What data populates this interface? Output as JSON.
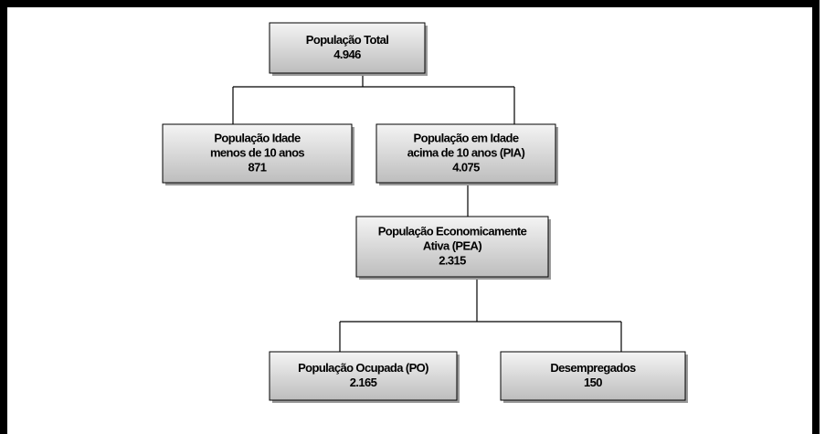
{
  "nodes": [
    {
      "lines": [
        "População Total"
      ],
      "value": "4.946"
    },
    {
      "lines": [
        "População Idade",
        "menos de 10 anos"
      ],
      "value": "871"
    },
    {
      "lines": [
        "População em Idade",
        "acima de 10 anos (PIA)"
      ],
      "value": "4.075"
    },
    {
      "lines": [
        "População Economicamente",
        "Ativa (PEA)"
      ],
      "value": "2.315"
    },
    {
      "lines": [
        "População Ocupada (PO)"
      ],
      "value": "2.165"
    },
    {
      "lines": [
        "Desempregados"
      ],
      "value": "150"
    }
  ]
}
